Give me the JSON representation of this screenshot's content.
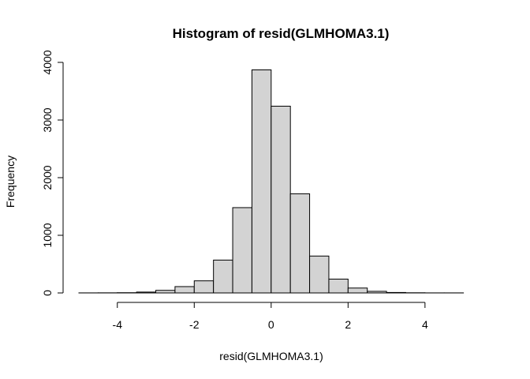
{
  "chart_data": {
    "type": "bar",
    "title": "Histogram of resid(GLMHOMA3.1)",
    "xlabel": "resid(GLMHOMA3.1)",
    "ylabel": "Frequency",
    "bin_edges": [
      -5,
      -4.5,
      -4,
      -3.5,
      -3,
      -2.5,
      -2,
      -1.5,
      -1,
      -0.5,
      0,
      0.5,
      1,
      1.5,
      2,
      2.5,
      3,
      3.5,
      4,
      4.5,
      5,
      5.5
    ],
    "values": [
      1,
      2,
      4,
      15,
      45,
      110,
      210,
      570,
      1480,
      3870,
      3240,
      1720,
      640,
      240,
      85,
      28,
      8,
      3,
      1,
      1,
      0
    ],
    "xlim": [
      -5,
      5.5
    ],
    "ylim": [
      0,
      4000
    ],
    "xticks": [
      -4,
      -2,
      0,
      2,
      4
    ],
    "yticks": [
      0,
      1000,
      2000,
      3000,
      4000
    ],
    "xtick_labels": [
      "-4",
      "-2",
      "0",
      "2",
      "4"
    ],
    "ytick_labels": [
      "0",
      "1000",
      "2000",
      "3000",
      "4000"
    ],
    "bar_color": "#d3d3d3",
    "grid": false
  }
}
